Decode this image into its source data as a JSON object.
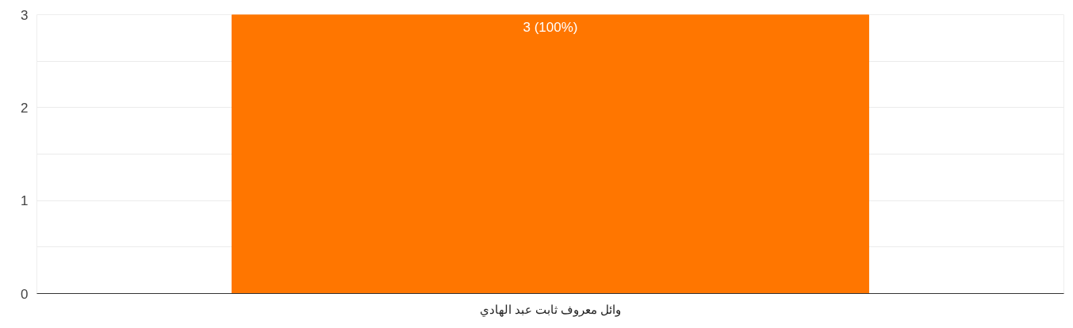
{
  "chart_data": {
    "type": "bar",
    "categories": [
      "وائل معروف ثابت عبد الهادي"
    ],
    "series": [
      {
        "color": "#ff7600",
        "values": [
          3
        ],
        "value_labels": [
          "3 (100%)"
        ]
      }
    ],
    "ylim": [
      0,
      3
    ],
    "yticks": [
      0,
      {
        "value": 0.5,
        "label": null
      },
      1,
      {
        "value": 1.5,
        "label": null
      },
      2,
      {
        "value": 2.5,
        "label": null
      },
      3
    ],
    "grid": "y"
  }
}
